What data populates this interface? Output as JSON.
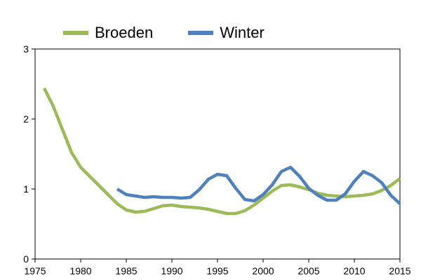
{
  "chart_data": {
    "type": "line",
    "title": "",
    "xlabel": "",
    "ylabel": "",
    "xlim": [
      1975,
      2015
    ],
    "ylim": [
      0,
      3
    ],
    "x_ticks": [
      1975,
      1980,
      1985,
      1990,
      1995,
      2000,
      2005,
      2010,
      2015
    ],
    "y_ticks": [
      0,
      1,
      2,
      3
    ],
    "grid": false,
    "legend_position": "top",
    "series": [
      {
        "name": "Broeden",
        "color": "#9bbb59",
        "x": [
          1976,
          1977,
          1978,
          1979,
          1980,
          1981,
          1982,
          1983,
          1984,
          1985,
          1986,
          1987,
          1988,
          1989,
          1990,
          1991,
          1992,
          1993,
          1994,
          1995,
          1996,
          1997,
          1998,
          1999,
          2000,
          2001,
          2002,
          2003,
          2004,
          2005,
          2006,
          2007,
          2008,
          2009,
          2010,
          2011,
          2012,
          2013,
          2014,
          2015
        ],
        "values": [
          2.44,
          2.18,
          1.85,
          1.52,
          1.31,
          1.18,
          1.05,
          0.92,
          0.79,
          0.7,
          0.67,
          0.68,
          0.72,
          0.76,
          0.77,
          0.75,
          0.74,
          0.73,
          0.71,
          0.68,
          0.65,
          0.65,
          0.69,
          0.77,
          0.87,
          0.97,
          1.05,
          1.06,
          1.03,
          0.99,
          0.94,
          0.91,
          0.9,
          0.89,
          0.9,
          0.91,
          0.93,
          0.98,
          1.05,
          1.15
        ]
      },
      {
        "name": "Winter",
        "color": "#4f81bd",
        "x": [
          1984,
          1985,
          1986,
          1987,
          1988,
          1989,
          1990,
          1991,
          1992,
          1993,
          1994,
          1995,
          1996,
          1997,
          1998,
          1999,
          2000,
          2001,
          2002,
          2003,
          2004,
          2005,
          2006,
          2007,
          2008,
          2009,
          2010,
          2011,
          2012,
          2013,
          2014,
          2015
        ],
        "values": [
          1.0,
          0.92,
          0.9,
          0.88,
          0.89,
          0.88,
          0.88,
          0.87,
          0.88,
          0.99,
          1.14,
          1.21,
          1.19,
          1.01,
          0.85,
          0.83,
          0.92,
          1.06,
          1.25,
          1.31,
          1.18,
          1.01,
          0.91,
          0.84,
          0.84,
          0.93,
          1.11,
          1.25,
          1.19,
          1.09,
          0.91,
          0.79
        ]
      }
    ]
  }
}
